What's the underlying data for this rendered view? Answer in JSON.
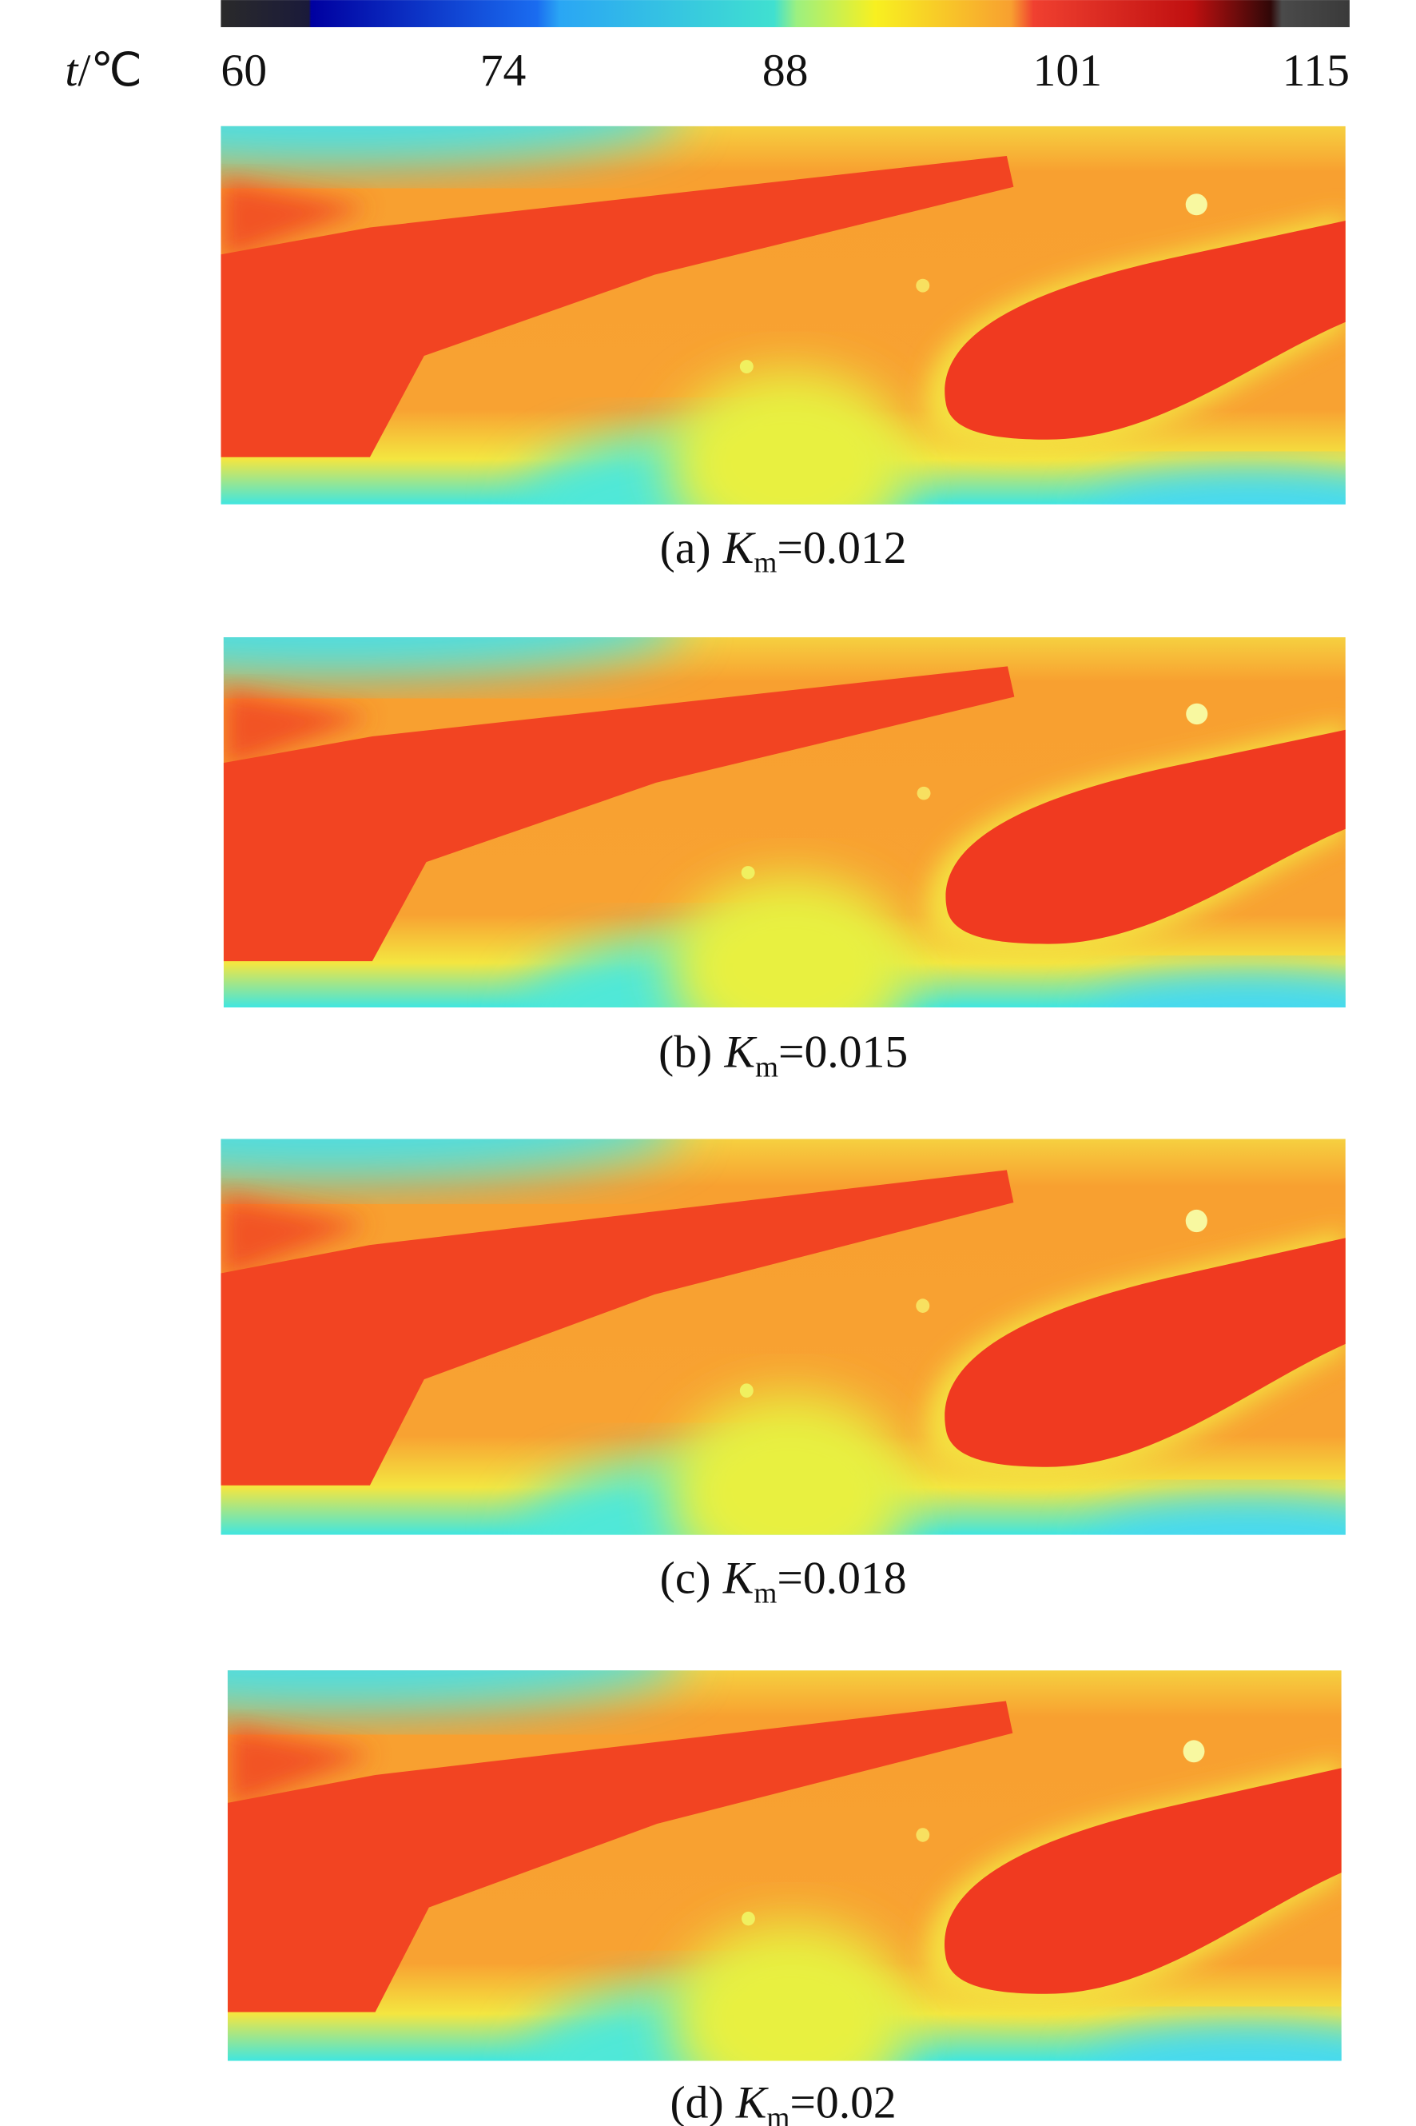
{
  "colorbar": {
    "symbol": "t",
    "unit": "/℃",
    "ticks": [
      60,
      74,
      88,
      101,
      115
    ]
  },
  "panels": [
    {
      "label": "(a)",
      "symbol": "K",
      "subscript": "m",
      "value": "=0.012"
    },
    {
      "label": "(b)",
      "symbol": "K",
      "subscript": "m",
      "value": "=0.015"
    },
    {
      "label": "(c)",
      "symbol": "K",
      "subscript": "m",
      "value": "=0.018"
    },
    {
      "label": "(d)",
      "symbol": "K",
      "subscript": "m",
      "value": "=0.02"
    }
  ]
}
